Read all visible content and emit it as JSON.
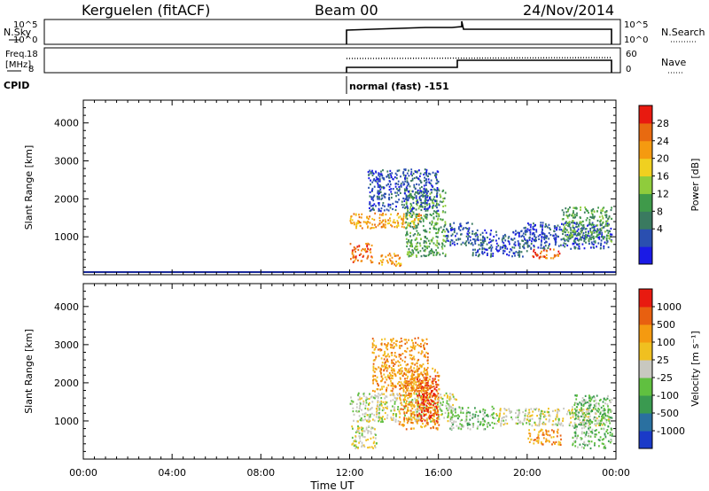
{
  "header": {
    "radar": "Kerguelen (fitACF)",
    "beam": "Beam 00",
    "date": "24/Nov/2014"
  },
  "top_panels": {
    "nsky_label": "N.Sky",
    "nsky_ticks": [
      "10^5",
      "10^0"
    ],
    "nsearch_label": "N.Search",
    "nsearch_ticks": [
      "10^5",
      "10^0"
    ],
    "freq_label_1": "Freq.",
    "freq_label_2": "[MHz]",
    "freq_ticks": [
      "18",
      "8"
    ],
    "nave_label": "Nave",
    "nave_ticks": [
      "60",
      "0"
    ],
    "cpid_label": "CPID",
    "cpid_text": "normal (fast) -151"
  },
  "chart_data": [
    {
      "type": "heatmap",
      "name": "power",
      "ylabel": "Slant Range [km]",
      "xlabel": "Time UT",
      "x_ticks": [
        "00:00",
        "04:00",
        "08:00",
        "12:00",
        "16:00",
        "20:00",
        "00:00"
      ],
      "y_ticks": [
        1000,
        2000,
        3000,
        4000
      ],
      "ylim": [
        0,
        4600
      ],
      "xlim": [
        0,
        24
      ],
      "colorbar_label": "Power [dB]",
      "colorbar_ticks": [
        "28",
        "24",
        "20",
        "16",
        "12",
        "8",
        "4"
      ],
      "colors": [
        "#1a1ae6",
        "#2a4fb0",
        "#3a7a60",
        "#3f9a4a",
        "#8fcc3c",
        "#f0d020",
        "#f59a10",
        "#e86a10",
        "#e81a10"
      ],
      "blobs": [
        {
          "t0": 12.0,
          "t1": 15.2,
          "r0": 1250,
          "r1": 1650,
          "level": 6
        },
        {
          "t0": 12.0,
          "t1": 13.0,
          "r0": 350,
          "r1": 850,
          "level": 7
        },
        {
          "t0": 13.3,
          "t1": 14.3,
          "r0": 250,
          "r1": 600,
          "level": 6
        },
        {
          "t0": 14.5,
          "t1": 16.3,
          "r0": 500,
          "r1": 2300,
          "level": 3
        },
        {
          "t0": 12.8,
          "t1": 16.0,
          "r0": 1700,
          "r1": 2800,
          "level": 1
        },
        {
          "t0": 16.3,
          "t1": 17.5,
          "r0": 800,
          "r1": 1400,
          "level": 1
        },
        {
          "t0": 17.5,
          "t1": 20.0,
          "r0": 500,
          "r1": 1200,
          "level": 1
        },
        {
          "t0": 19.8,
          "t1": 23.8,
          "r0": 700,
          "r1": 1400,
          "level": 1
        },
        {
          "t0": 21.5,
          "t1": 23.8,
          "r0": 900,
          "r1": 1800,
          "level": 3
        },
        {
          "t0": 20.2,
          "t1": 21.5,
          "r0": 450,
          "r1": 700,
          "level": 7
        }
      ]
    },
    {
      "type": "heatmap",
      "name": "velocity",
      "ylabel": "Slant Range [km]",
      "xlabel": "Time UT",
      "x_ticks": [
        "00:00",
        "04:00",
        "08:00",
        "12:00",
        "16:00",
        "20:00",
        "00:00"
      ],
      "y_ticks": [
        1000,
        2000,
        3000,
        4000
      ],
      "ylim": [
        0,
        4600
      ],
      "xlim": [
        0,
        24
      ],
      "colorbar_label": "Velocity [m s⁻¹]",
      "colorbar_ticks": [
        "1000",
        "500",
        "100",
        "25",
        "-25",
        "-100",
        "-500",
        "-1000"
      ],
      "colors": [
        "#1a3ac8",
        "#2a70a0",
        "#3a9a50",
        "#60c040",
        "#c8c8c0",
        "#f0c020",
        "#f59a10",
        "#e86010",
        "#e81a10"
      ],
      "blobs": [
        {
          "t0": 12.0,
          "t1": 16.8,
          "r0": 1000,
          "r1": 1750,
          "level": 4
        },
        {
          "t0": 12.0,
          "t1": 13.2,
          "r0": 300,
          "r1": 900,
          "level": 4
        },
        {
          "t0": 14.2,
          "t1": 16.0,
          "r0": 800,
          "r1": 2400,
          "level": 6
        },
        {
          "t0": 15.0,
          "t1": 15.9,
          "r0": 1000,
          "r1": 2200,
          "level": 8
        },
        {
          "t0": 13.0,
          "t1": 15.5,
          "r0": 1800,
          "r1": 3200,
          "level": 6
        },
        {
          "t0": 16.5,
          "t1": 18.5,
          "r0": 800,
          "r1": 1400,
          "level": 3
        },
        {
          "t0": 18.5,
          "t1": 23.8,
          "r0": 900,
          "r1": 1350,
          "level": 4
        },
        {
          "t0": 20.0,
          "t1": 21.5,
          "r0": 400,
          "r1": 800,
          "level": 6
        },
        {
          "t0": 22.0,
          "t1": 23.8,
          "r0": 300,
          "r1": 1700,
          "level": 3
        }
      ]
    }
  ]
}
